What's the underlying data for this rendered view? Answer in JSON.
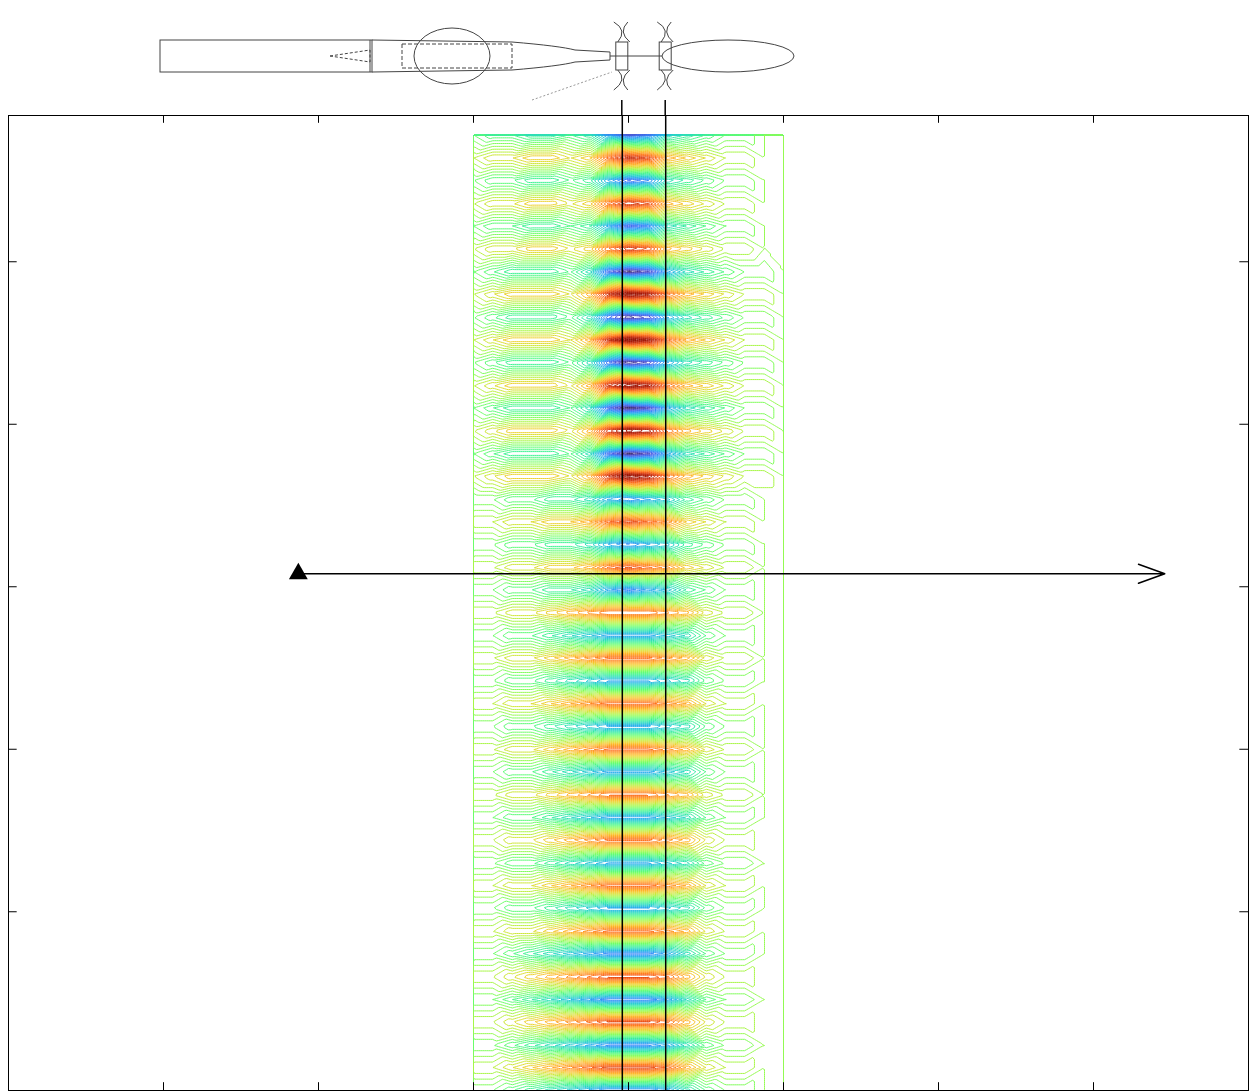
{
  "chart_data": {
    "type": "contour",
    "xlim": [
      0,
      8
    ],
    "xticks": [
      1,
      2,
      3,
      4,
      5,
      6,
      7
    ],
    "ylim": [
      -0.1,
      5.9
    ],
    "yticks": [
      1,
      2,
      3,
      4,
      5
    ],
    "tick_labels": false,
    "color_range": [
      -10,
      10
    ],
    "vlines": [
      3.96,
      4.24
    ],
    "arrow": {
      "x": [
        1.87,
        7.46
      ],
      "y": 3.08
    },
    "field": {
      "x": [
        3,
        3.125,
        3.25,
        3.375,
        3.5,
        3.625,
        3.75,
        3.875,
        4,
        4.125,
        4.25,
        4.375,
        4.5,
        4.625,
        4.75,
        4.875,
        5
      ],
      "y": [
        -0.1,
        0.04,
        0.18,
        0.32,
        0.46,
        0.6,
        0.74,
        0.88,
        1.02,
        1.16,
        1.3,
        1.44,
        1.58,
        1.72,
        1.86,
        2.0,
        2.14,
        2.28,
        2.42,
        2.56,
        2.7,
        2.84,
        2.98,
        3.12,
        3.26,
        3.4,
        3.54,
        3.68,
        3.82,
        3.96,
        4.1,
        4.24,
        4.38,
        4.52,
        4.66,
        4.8,
        4.94,
        5.08,
        5.22,
        5.36,
        5.5,
        5.64,
        5.78
      ],
      "values": [
        [
          -1,
          -1,
          -2,
          -3,
          -4,
          -5,
          -6,
          -7,
          -7,
          -7,
          -6,
          -4,
          -2,
          -1,
          -1,
          0,
          0
        ],
        [
          1,
          1,
          2,
          3,
          4,
          5,
          6,
          7,
          7,
          7,
          6,
          4,
          2,
          1,
          1,
          0,
          0
        ],
        [
          -1,
          -1,
          -2,
          -3,
          -4,
          -5,
          -6,
          -7,
          -7,
          -7,
          -6,
          -4,
          -2,
          -1,
          -1,
          0,
          0
        ],
        [
          1,
          1,
          2,
          3,
          4,
          5,
          6,
          7,
          7,
          7,
          6,
          4,
          2,
          1,
          1,
          0,
          0
        ],
        [
          -1,
          -1,
          -2,
          -3,
          -4,
          -5,
          -6,
          -7,
          -7,
          -7,
          -6,
          -4,
          -2,
          -1,
          -1,
          0,
          0
        ],
        [
          1,
          1,
          2,
          3,
          4,
          5,
          6,
          7,
          7,
          7,
          6,
          4,
          2,
          1,
          1,
          0,
          0
        ],
        [
          -1,
          -1,
          -2,
          -3,
          -4,
          -5,
          -6,
          -7,
          -7,
          -7,
          -6,
          -4,
          -2,
          -1,
          -1,
          0,
          0
        ],
        [
          1,
          1,
          2,
          2,
          3,
          4,
          5,
          6,
          6,
          6,
          5,
          4,
          2,
          1,
          1,
          0,
          0
        ],
        [
          -1,
          -1,
          -2,
          -2,
          -3,
          -4,
          -5,
          -6,
          -6,
          -6,
          -5,
          -4,
          -2,
          -1,
          -1,
          0,
          0
        ],
        [
          1,
          1,
          2,
          2,
          3,
          4,
          5,
          6,
          6,
          6,
          5,
          4,
          2,
          1,
          1,
          0,
          0
        ],
        [
          -1,
          -1,
          -2,
          -2,
          -3,
          -4,
          -5,
          -6,
          -6,
          -6,
          -5,
          -4,
          -2,
          -1,
          -1,
          0,
          0
        ],
        [
          1,
          1,
          2,
          2,
          3,
          4,
          5,
          6,
          6,
          6,
          5,
          4,
          2,
          1,
          1,
          0,
          0
        ],
        [
          -1,
          -1,
          -2,
          -2,
          -3,
          -4,
          -5,
          -6,
          -6,
          -6,
          -5,
          -4,
          -2,
          -1,
          -1,
          0,
          0
        ],
        [
          1,
          1,
          2,
          2,
          3,
          4,
          5,
          6,
          6,
          6,
          5,
          4,
          2,
          1,
          1,
          0,
          0
        ],
        [
          -1,
          -1,
          -2,
          -2,
          -3,
          -4,
          -5,
          -6,
          -6,
          -6,
          -5,
          -4,
          -2,
          -1,
          -1,
          0,
          0
        ],
        [
          1,
          1,
          2,
          2,
          3,
          4,
          5,
          6,
          6,
          6,
          5,
          4,
          2,
          1,
          1,
          0,
          0
        ],
        [
          -1,
          -1,
          -2,
          -2,
          -3,
          -4,
          -5,
          -6,
          -6,
          -6,
          -5,
          -4,
          -2,
          -1,
          -1,
          0,
          0
        ],
        [
          1,
          1,
          2,
          2,
          3,
          4,
          5,
          6,
          6,
          6,
          5,
          4,
          2,
          1,
          1,
          0,
          0
        ],
        [
          -1,
          -1,
          -2,
          -2,
          -3,
          -4,
          -5,
          -6,
          -6,
          -6,
          -5,
          -4,
          -2,
          -1,
          -1,
          0,
          0
        ],
        [
          1,
          1,
          2,
          2,
          3,
          4,
          5,
          6,
          6,
          6,
          5,
          4,
          2,
          1,
          1,
          0,
          0
        ],
        [
          -1,
          -1,
          -2,
          -2,
          -3,
          -4,
          -5,
          -6,
          -6,
          -6,
          -5,
          -4,
          -2,
          -1,
          -1,
          0,
          0
        ],
        [
          1,
          1,
          2,
          2,
          3,
          4,
          5,
          6,
          6,
          6,
          5,
          4,
          2,
          1,
          1,
          0,
          0
        ],
        [
          -1,
          -1,
          -2,
          -2,
          -3,
          -3,
          -4,
          -6,
          -7,
          -6,
          -5,
          -3,
          -2,
          -1,
          -1,
          0,
          0
        ],
        [
          1,
          1,
          2,
          2,
          3,
          3,
          4,
          6,
          7,
          6,
          5,
          3,
          2,
          1,
          1,
          0,
          0
        ],
        [
          -1,
          -1,
          -2,
          -2,
          -3,
          -3,
          -4,
          -6,
          -7,
          -6,
          -5,
          -3,
          -2,
          -1,
          -1,
          0,
          0
        ],
        [
          1,
          1,
          2,
          2,
          3,
          3,
          4,
          6,
          7,
          6,
          5,
          3,
          2,
          1,
          1,
          0,
          0
        ],
        [
          -1,
          -1,
          -2,
          -2,
          -3,
          -3,
          -4,
          -6,
          -7,
          -6,
          -5,
          -3,
          -2,
          -1,
          -1,
          0,
          0
        ],
        [
          1,
          2,
          3,
          3,
          3,
          2,
          4,
          8,
          10,
          9,
          6,
          4,
          3,
          2,
          1,
          1,
          0
        ],
        [
          -1,
          -2,
          -3,
          -3,
          -3,
          -2,
          -4,
          -8,
          -10,
          -9,
          -6,
          -4,
          -3,
          -2,
          -1,
          -1,
          0
        ],
        [
          1,
          2,
          3,
          3,
          3,
          2,
          4,
          8,
          10,
          9,
          6,
          4,
          3,
          2,
          1,
          1,
          0
        ],
        [
          -1,
          -2,
          -3,
          -3,
          -3,
          -2,
          -4,
          -8,
          -10,
          -9,
          -6,
          -4,
          -3,
          -2,
          -1,
          -1,
          0
        ],
        [
          1,
          2,
          3,
          3,
          3,
          2,
          4,
          8,
          10,
          9,
          6,
          4,
          3,
          2,
          1,
          1,
          0
        ],
        [
          -1,
          -2,
          -3,
          -3,
          -3,
          -2,
          -4,
          -8,
          -10,
          -9,
          -6,
          -4,
          -3,
          -2,
          -1,
          -1,
          0
        ],
        [
          1,
          2,
          3,
          3,
          3,
          2,
          4,
          8,
          10,
          9,
          6,
          4,
          3,
          2,
          1,
          1,
          0
        ],
        [
          -1,
          -2,
          -3,
          -3,
          -3,
          -2,
          -4,
          -8,
          -10,
          -9,
          -6,
          -4,
          -3,
          -2,
          -1,
          -1,
          0
        ],
        [
          1,
          2,
          3,
          3,
          3,
          2,
          4,
          8,
          10,
          9,
          6,
          4,
          3,
          2,
          1,
          1,
          0
        ],
        [
          -1,
          -2,
          -3,
          -3,
          -3,
          -2,
          -4,
          -8,
          -10,
          -9,
          -6,
          -4,
          -3,
          -2,
          -1,
          -1,
          0
        ],
        [
          1,
          2,
          2,
          3,
          3,
          2,
          3,
          6,
          8,
          7,
          4,
          3,
          2,
          1,
          1,
          0,
          0
        ],
        [
          -1,
          -2,
          -2,
          -3,
          -3,
          -2,
          -3,
          -6,
          -8,
          -7,
          -4,
          -3,
          -2,
          -1,
          -1,
          0,
          0
        ],
        [
          1,
          2,
          2,
          3,
          3,
          2,
          3,
          6,
          8,
          7,
          4,
          3,
          2,
          1,
          1,
          0,
          0
        ],
        [
          -1,
          -2,
          -2,
          -3,
          -3,
          -2,
          -3,
          -6,
          -8,
          -7,
          -4,
          -3,
          -2,
          -1,
          -1,
          0,
          0
        ],
        [
          1,
          2,
          2,
          3,
          3,
          2,
          3,
          6,
          8,
          7,
          4,
          3,
          2,
          1,
          1,
          0,
          0
        ],
        [
          -1,
          -2,
          -2,
          -3,
          -3,
          -2,
          -3,
          -6,
          -8,
          -7,
          -4,
          -3,
          -2,
          -1,
          -1,
          0,
          0
        ]
      ]
    }
  }
}
